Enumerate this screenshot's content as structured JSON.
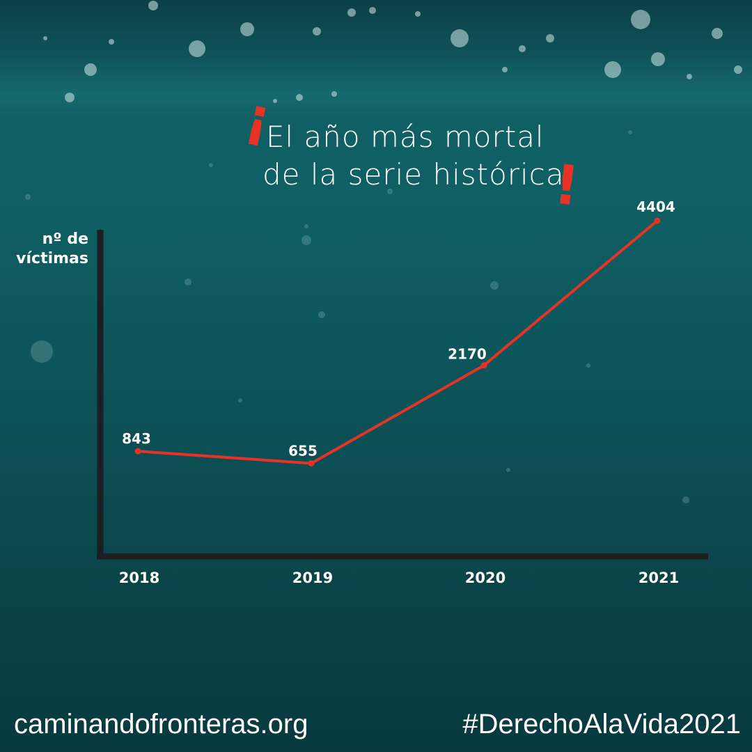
{
  "title": {
    "line1": "El año más mortal",
    "line2": "de la serie histórica",
    "open_mark": "!",
    "close_mark": "!"
  },
  "footer": {
    "website": "caminandofronteras.org",
    "hashtag": "#DerechoAlaVida2021"
  },
  "colors": {
    "line": "#e63325",
    "axis": "#1b1f24",
    "text": "#ffffff"
  },
  "chart_data": {
    "type": "line",
    "ylabel": [
      "nº de",
      "víctimas"
    ],
    "categories": [
      "2018",
      "2019",
      "2020",
      "2021"
    ],
    "values": [
      843,
      655,
      2170,
      4404
    ],
    "data_labels": [
      "843",
      "655",
      "2170",
      "4404"
    ],
    "grid": false
  }
}
